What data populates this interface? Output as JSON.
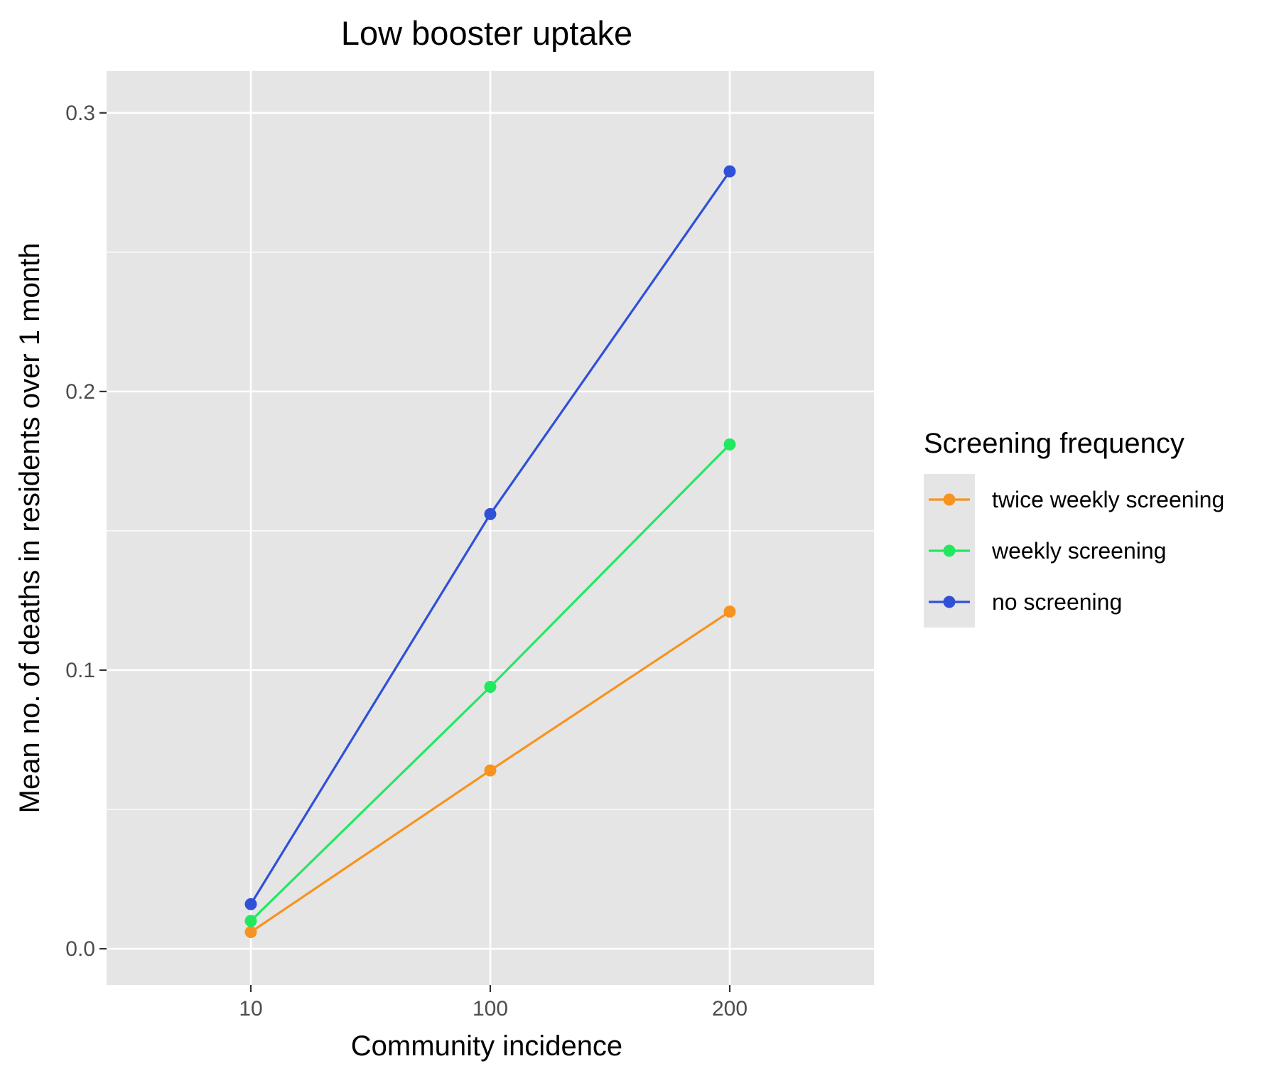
{
  "chart_data": {
    "type": "line",
    "title": "Low booster uptake",
    "xlabel": "Community incidence",
    "ylabel": "Mean no. of deaths in residents over 1 month",
    "categories": [
      "10",
      "100",
      "200"
    ],
    "ylim": [
      -0.013,
      0.315
    ],
    "yticks": [
      0.0,
      0.1,
      0.2,
      0.3
    ],
    "ytick_labels": [
      "0.0",
      "0.1",
      "0.2",
      "0.3"
    ],
    "grid": true,
    "panel_background": "#e5e5e5",
    "grid_color": "#ffffff",
    "legend": {
      "title": "Screening frequency",
      "position": "right"
    },
    "series": [
      {
        "name": "twice weekly screening",
        "color": "#f7931e",
        "values": [
          0.006,
          0.064,
          0.121
        ]
      },
      {
        "name": "weekly screening",
        "color": "#22e85f",
        "values": [
          0.01,
          0.094,
          0.181
        ]
      },
      {
        "name": "no screening",
        "color": "#3050d8",
        "values": [
          0.016,
          0.156,
          0.279
        ]
      }
    ]
  }
}
